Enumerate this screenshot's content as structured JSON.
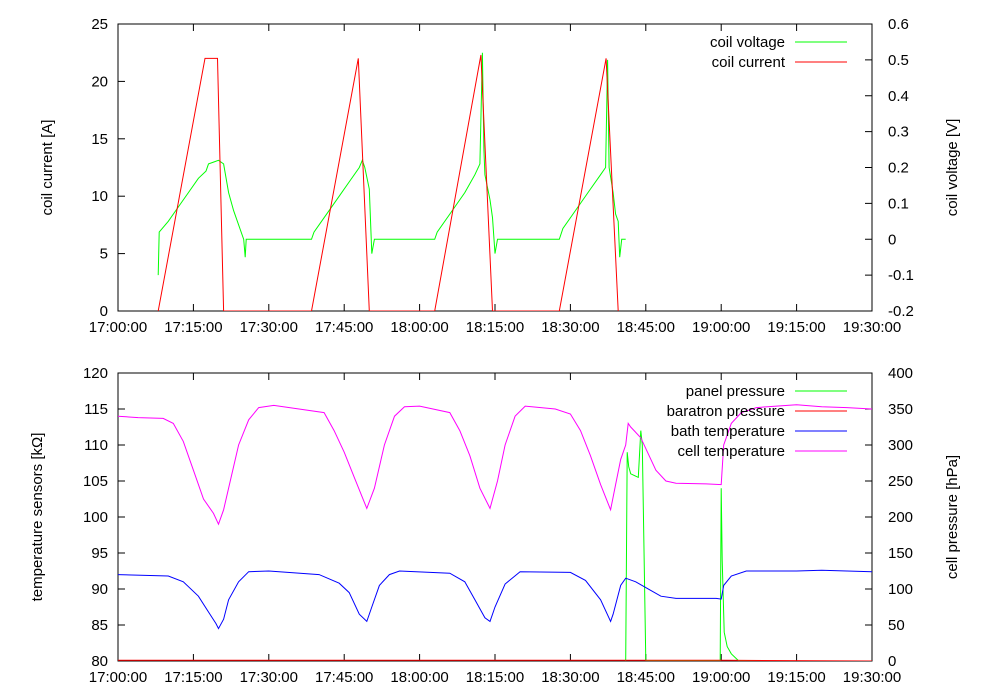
{
  "chart_data": [
    {
      "type": "line",
      "xlabel": "",
      "ylabel": "coil current [A]",
      "y2label": "coil voltage [V]",
      "ylim": [
        0,
        25
      ],
      "y2lim": [
        -0.2,
        0.6
      ],
      "xlim_minutes": [
        1020,
        1170
      ],
      "yticks": [
        "0",
        "5",
        "10",
        "15",
        "20",
        "25"
      ],
      "y2ticks": [
        "-0.2",
        "-0.1",
        "0",
        "0.1",
        "0.2",
        "0.3",
        "0.4",
        "0.5",
        "0.6"
      ],
      "xticks": [
        "17:00:00",
        "17:15:00",
        "17:30:00",
        "17:45:00",
        "18:00:00",
        "18:15:00",
        "18:30:00",
        "18:45:00",
        "19:00:00",
        "19:15:00",
        "19:30:00"
      ],
      "legend_position": "top-right",
      "series": [
        {
          "name": "coil voltage",
          "axis": "y2",
          "color": "#00ff00",
          "points": [
            [
              1028.0,
              -0.1
            ],
            [
              1028.2,
              0.02
            ],
            [
              1030,
              0.05
            ],
            [
              1032,
              0.09
            ],
            [
              1034,
              0.13
            ],
            [
              1036,
              0.17
            ],
            [
              1037.5,
              0.19
            ],
            [
              1038,
              0.21
            ],
            [
              1039,
              0.215
            ],
            [
              1040,
              0.22
            ],
            [
              1041,
              0.21
            ],
            [
              1042,
              0.13
            ],
            [
              1043,
              0.08
            ],
            [
              1045,
              0.0
            ],
            [
              1045.3,
              -0.05
            ],
            [
              1045.5,
              0.0
            ],
            [
              1057,
              0.0
            ],
            [
              1058.5,
              0.0
            ],
            [
              1059,
              0.02
            ],
            [
              1061,
              0.06
            ],
            [
              1064,
              0.12
            ],
            [
              1066,
              0.16
            ],
            [
              1068,
              0.2
            ],
            [
              1068.6,
              0.22
            ],
            [
              1069.1,
              0.2
            ],
            [
              1070,
              0.14
            ],
            [
              1070.5,
              -0.04
            ],
            [
              1071,
              0.0
            ],
            [
              1082,
              0.0
            ],
            [
              1083,
              0.0
            ],
            [
              1083.5,
              0.02
            ],
            [
              1086,
              0.07
            ],
            [
              1089,
              0.13
            ],
            [
              1091,
              0.18
            ],
            [
              1092,
              0.21
            ],
            [
              1092.5,
              0.52
            ],
            [
              1092.8,
              0.25
            ],
            [
              1093,
              0.18
            ],
            [
              1094,
              0.11
            ],
            [
              1094.5,
              0.06
            ],
            [
              1095,
              -0.04
            ],
            [
              1095.5,
              0.0
            ],
            [
              1107,
              0.0
            ],
            [
              1107.8,
              0.0
            ],
            [
              1108.5,
              0.03
            ],
            [
              1111,
              0.08
            ],
            [
              1114,
              0.14
            ],
            [
              1116,
              0.18
            ],
            [
              1117,
              0.2
            ],
            [
              1117.4,
              0.5
            ],
            [
              1117.7,
              0.2
            ],
            [
              1118.5,
              0.13
            ],
            [
              1119,
              0.07
            ],
            [
              1119.5,
              0.05
            ],
            [
              1119.8,
              -0.05
            ],
            [
              1120.2,
              0.0
            ],
            [
              1121,
              0.0
            ]
          ]
        },
        {
          "name": "coil current",
          "axis": "y",
          "color": "#ff0000",
          "points": [
            [
              1028,
              0
            ],
            [
              1037.3,
              22
            ],
            [
              1039.8,
              22
            ],
            [
              1041,
              0
            ],
            [
              1049,
              0
            ],
            [
              1058.5,
              0
            ],
            [
              1067.8,
              22
            ],
            [
              1070,
              0
            ],
            [
              1081,
              0
            ],
            [
              1083,
              0
            ],
            [
              1092.2,
              22.3
            ],
            [
              1094.5,
              0
            ],
            [
              1106,
              0
            ],
            [
              1107.8,
              0
            ],
            [
              1117.1,
              22
            ],
            [
              1119.5,
              0
            ]
          ]
        }
      ]
    },
    {
      "type": "line",
      "xlabel": "",
      "ylabel": "temperature sensors [kΩ]",
      "y2label": "cell pressure [hPa]",
      "ylim": [
        80,
        120
      ],
      "y2lim": [
        0,
        400
      ],
      "xlim_minutes": [
        1020,
        1170
      ],
      "yticks": [
        "80",
        "85",
        "90",
        "95",
        "100",
        "105",
        "110",
        "115",
        "120"
      ],
      "y2ticks": [
        "0",
        "50",
        "100",
        "150",
        "200",
        "250",
        "300",
        "350",
        "400"
      ],
      "xticks": [
        "17:00:00",
        "17:15:00",
        "17:30:00",
        "17:45:00",
        "18:00:00",
        "18:15:00",
        "18:30:00",
        "18:45:00",
        "19:00:00",
        "19:15:00",
        "19:30:00"
      ],
      "legend_position": "top-right",
      "series": [
        {
          "name": "panel pressure",
          "axis": "y2",
          "color": "#00ff00",
          "points": [
            [
              1121,
              0
            ],
            [
              1121.3,
              290
            ],
            [
              1121.6,
              270
            ],
            [
              1122,
              260
            ],
            [
              1123.5,
              255
            ],
            [
              1124,
              320
            ],
            [
              1124.3,
              300
            ],
            [
              1125,
              0
            ],
            [
              1139.8,
              0
            ],
            [
              1140,
              240
            ],
            [
              1140.2,
              140
            ],
            [
              1140.6,
              40
            ],
            [
              1141.2,
              20
            ],
            [
              1142,
              10
            ],
            [
              1143.5,
              0
            ],
            [
              1170,
              0
            ]
          ]
        },
        {
          "name": "baratron pressure",
          "axis": "y2",
          "color": "#ff0000",
          "points": [
            [
              1020,
              1
            ],
            [
              1120,
              1
            ],
            [
              1141,
              1
            ],
            [
              1170,
              0
            ]
          ]
        },
        {
          "name": "bath temperature",
          "axis": "y",
          "color": "#0000ff",
          "points": [
            [
              1020,
              92.0
            ],
            [
              1030,
              91.8
            ],
            [
              1033,
              91.0
            ],
            [
              1036,
              89.0
            ],
            [
              1038,
              86.8
            ],
            [
              1039.5,
              85.2
            ],
            [
              1040,
              84.5
            ],
            [
              1041,
              85.8
            ],
            [
              1042,
              88.5
            ],
            [
              1044,
              91.0
            ],
            [
              1046,
              92.4
            ],
            [
              1050,
              92.5
            ],
            [
              1060,
              92.0
            ],
            [
              1064,
              90.8
            ],
            [
              1066,
              89.5
            ],
            [
              1068,
              86.5
            ],
            [
              1069.5,
              85.5
            ],
            [
              1070.5,
              87.5
            ],
            [
              1072,
              90.5
            ],
            [
              1074,
              92.0
            ],
            [
              1076,
              92.5
            ],
            [
              1086,
              92.2
            ],
            [
              1089,
              91.0
            ],
            [
              1091,
              88.5
            ],
            [
              1093,
              86.0
            ],
            [
              1094,
              85.5
            ],
            [
              1095,
              87.5
            ],
            [
              1097,
              90.7
            ],
            [
              1100,
              92.4
            ],
            [
              1110,
              92.3
            ],
            [
              1113,
              91.2
            ],
            [
              1116,
              88.5
            ],
            [
              1118,
              85.5
            ],
            [
              1118.5,
              86.5
            ],
            [
              1120,
              90.5
            ],
            [
              1121,
              91.5
            ],
            [
              1123,
              91.0
            ],
            [
              1126,
              89.8
            ],
            [
              1128,
              89.0
            ],
            [
              1131,
              88.7
            ],
            [
              1139,
              88.7
            ],
            [
              1140,
              88.6
            ],
            [
              1140.5,
              90.5
            ],
            [
              1142,
              91.8
            ],
            [
              1145,
              92.5
            ],
            [
              1155,
              92.5
            ],
            [
              1160,
              92.6
            ],
            [
              1170,
              92.4
            ]
          ]
        },
        {
          "name": "cell temperature",
          "axis": "y",
          "color": "#ff00ff",
          "points": [
            [
              1020,
              114.0
            ],
            [
              1024,
              113.8
            ],
            [
              1029,
              113.7
            ],
            [
              1031,
              113.0
            ],
            [
              1033,
              110.5
            ],
            [
              1035,
              106.5
            ],
            [
              1037,
              102.5
            ],
            [
              1039,
              100.5
            ],
            [
              1040,
              99.0
            ],
            [
              1041,
              101.0
            ],
            [
              1042.5,
              105.5
            ],
            [
              1044,
              110.0
            ],
            [
              1046,
              113.5
            ],
            [
              1048,
              115.2
            ],
            [
              1051,
              115.5
            ],
            [
              1056,
              115.0
            ],
            [
              1061,
              114.5
            ],
            [
              1063,
              112.0
            ],
            [
              1065,
              109.0
            ],
            [
              1067,
              105.5
            ],
            [
              1069.5,
              101.2
            ],
            [
              1071,
              104.0
            ],
            [
              1073,
              110.0
            ],
            [
              1075,
              114.0
            ],
            [
              1077,
              115.3
            ],
            [
              1080,
              115.4
            ],
            [
              1086,
              114.5
            ],
            [
              1088,
              112.0
            ],
            [
              1090,
              108.5
            ],
            [
              1092,
              104.0
            ],
            [
              1094,
              101.2
            ],
            [
              1095.5,
              105.0
            ],
            [
              1097,
              110.0
            ],
            [
              1099,
              114.0
            ],
            [
              1101,
              115.4
            ],
            [
              1107,
              115.0
            ],
            [
              1110,
              114.3
            ],
            [
              1112,
              112.0
            ],
            [
              1114,
              108.5
            ],
            [
              1116,
              104.5
            ],
            [
              1118,
              101.0
            ],
            [
              1119,
              104.5
            ],
            [
              1120,
              108.0
            ],
            [
              1121,
              110.0
            ],
            [
              1121.5,
              113.0
            ],
            [
              1122,
              112.5
            ],
            [
              1124,
              111.0
            ],
            [
              1125,
              109.5
            ],
            [
              1127,
              106.5
            ],
            [
              1129,
              105.0
            ],
            [
              1131,
              104.7
            ],
            [
              1137,
              104.6
            ],
            [
              1140,
              104.5
            ],
            [
              1140.5,
              110.0
            ],
            [
              1142,
              113.0
            ],
            [
              1144,
              114.5
            ],
            [
              1147,
              115.2
            ],
            [
              1151,
              115.4
            ],
            [
              1155,
              115.6
            ],
            [
              1160,
              115.3
            ],
            [
              1165,
              115.2
            ],
            [
              1170,
              115.0
            ]
          ]
        }
      ]
    }
  ]
}
